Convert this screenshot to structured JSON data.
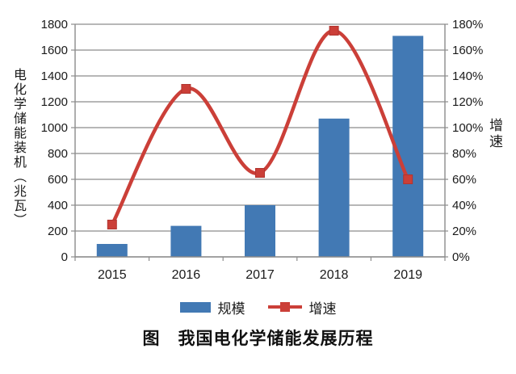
{
  "figure_title": "图　我国电化学储能发展历程",
  "legend": {
    "items": [
      {
        "label": "规模",
        "swatch": "bar",
        "color": "#4279b4"
      },
      {
        "label": "增速",
        "swatch": "line-with-square-marker",
        "color": "#cb3f38"
      }
    ],
    "position": "bottom"
  },
  "chart_data": {
    "type": "combo",
    "title": "图　我国电化学储能发展历程",
    "categories": [
      "2015",
      "2016",
      "2017",
      "2018",
      "2019"
    ],
    "series": [
      {
        "name": "规模",
        "type": "bar",
        "axis": "left",
        "unit": "兆瓦",
        "values": [
          100,
          240,
          400,
          1070,
          1710
        ],
        "color": "#4279b4"
      },
      {
        "name": "增速",
        "type": "line",
        "axis": "right",
        "unit": "%",
        "values": [
          25,
          130,
          65,
          175,
          60
        ],
        "color": "#cb3f38",
        "marker": "square",
        "smooth": true
      }
    ],
    "left_axis": {
      "label": "电化学储能装机（兆瓦）",
      "min": 0,
      "max": 1800,
      "tick_step": 200,
      "tick_labels": [
        "0",
        "200",
        "400",
        "600",
        "800",
        "1000",
        "1200",
        "1400",
        "1600",
        "1800"
      ]
    },
    "right_axis": {
      "label": "增速",
      "min": 0,
      "max": 180,
      "tick_step": 20,
      "tick_labels": [
        "0%",
        "20%",
        "40%",
        "60%",
        "80%",
        "100%",
        "120%",
        "140%",
        "160%",
        "180%"
      ]
    },
    "grid": true,
    "legend_position": "bottom",
    "colors": {
      "bar": "#4279b4",
      "line": "#cb3f38",
      "marker_edge": "#b13530",
      "gridline": "#8c8c8c",
      "text": "#1a1a1a",
      "background": "#ffffff"
    }
  }
}
